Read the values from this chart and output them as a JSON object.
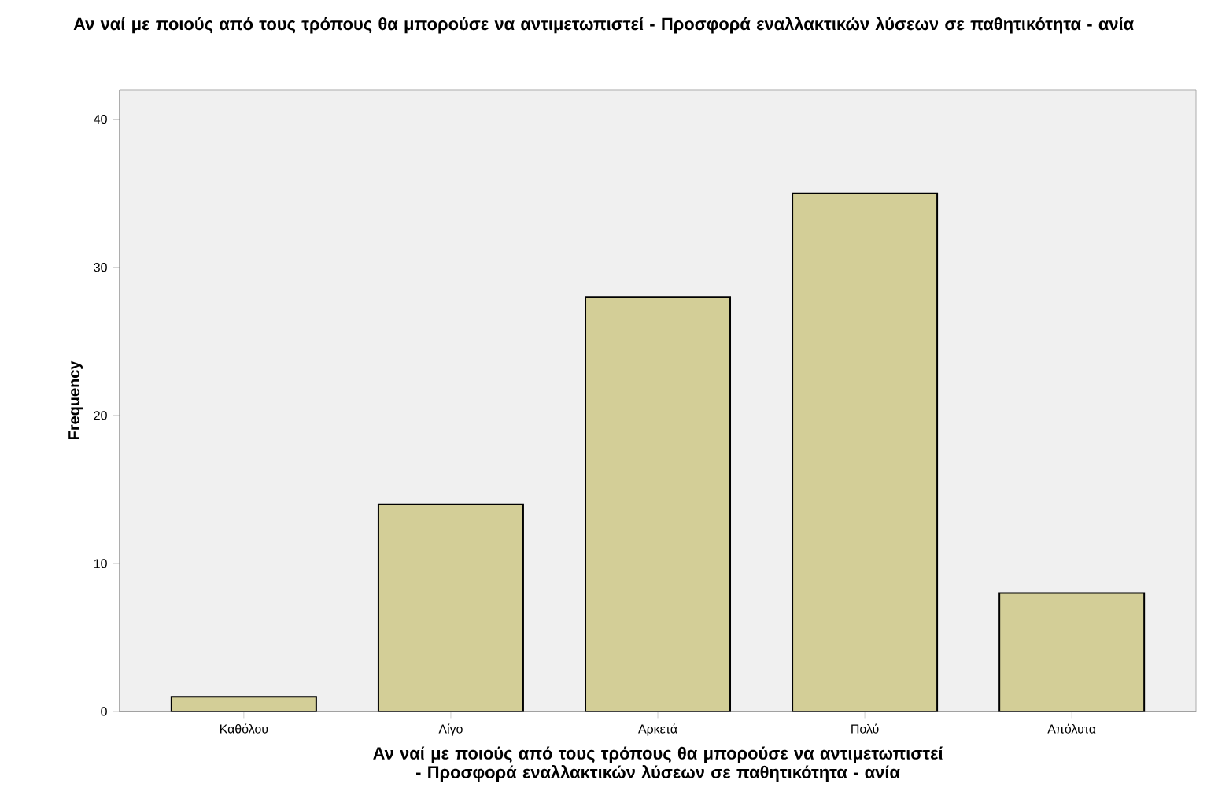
{
  "chart_data": {
    "type": "bar",
    "title": "Αν ναί με ποιούς από τους τρόπους θα μπορούσε να αντιμετωπιστεί - Προσφορά εναλλακτικών λύσεων σε παθητικότητα - ανία",
    "xlabel": "Αν ναί με ποιούς από τους τρόπους θα μπορούσε να αντιμετωπιστεί - Προσφορά εναλλακτικών λύσεων σε παθητικότητα - ανία",
    "ylabel": "Frequency",
    "categories": [
      "Καθόλου",
      "Λίγο",
      "Αρκετά",
      "Πολύ",
      "Απόλυτα"
    ],
    "values": [
      1,
      14,
      28,
      35,
      8
    ],
    "color": "#d3ce97",
    "ylim": [
      0,
      42
    ],
    "yticks": [
      0,
      10,
      20,
      30,
      40
    ],
    "grid": false
  }
}
